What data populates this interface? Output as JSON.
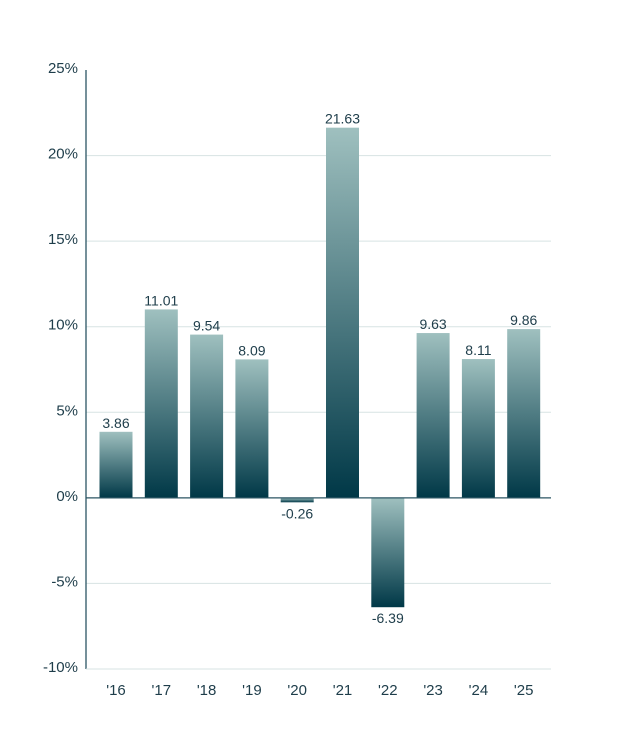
{
  "chart_data": {
    "type": "bar",
    "categories": [
      "'16",
      "'17",
      "'18",
      "'19",
      "'20",
      "'21",
      "'22",
      "'23",
      "'24",
      "'25"
    ],
    "values": [
      3.86,
      11.01,
      9.54,
      8.09,
      -0.26,
      21.63,
      -6.39,
      9.63,
      8.11,
      9.86
    ],
    "value_labels": [
      "3.86",
      "11.01",
      "9.54",
      "8.09",
      "-0.26",
      "21.63",
      "-6.39",
      "9.63",
      "8.11",
      "9.86"
    ],
    "yticks": [
      25,
      20,
      15,
      10,
      5,
      0,
      -5,
      -10
    ],
    "ytick_labels": [
      "25%",
      "20%",
      "15%",
      "10%",
      "5%",
      "0%",
      "-5%",
      "-10%"
    ],
    "ylim": [
      -10,
      25
    ],
    "title": "",
    "xlabel": "",
    "ylabel": "",
    "grid": true,
    "colors": {
      "bar_top": "#9fc0bf",
      "bar_bottom": "#003847",
      "axis": "#2b5563",
      "grid": "#d7e3e3",
      "text": "#1e3d4a"
    }
  }
}
